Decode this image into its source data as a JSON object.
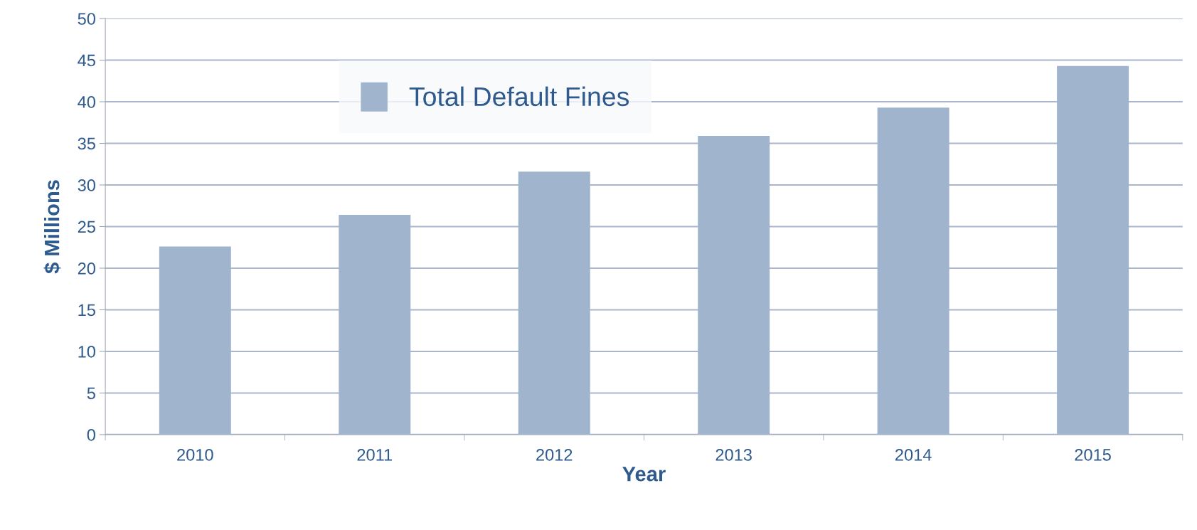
{
  "chart_data": {
    "type": "bar",
    "xlabel": "Year",
    "ylabel": "$ Millions",
    "categories": [
      "2010",
      "2011",
      "2012",
      "2013",
      "2014",
      "2015"
    ],
    "series": [
      {
        "name": "Total Default Fines",
        "color": "#a0b4ce",
        "values": [
          22.6,
          26.4,
          31.6,
          35.9,
          39.3,
          44.3
        ]
      }
    ],
    "ylim": [
      0,
      50
    ],
    "yticks": [
      0,
      5,
      10,
      15,
      20,
      25,
      30,
      35,
      40,
      45,
      50
    ],
    "grid": "y",
    "legend": "top"
  }
}
